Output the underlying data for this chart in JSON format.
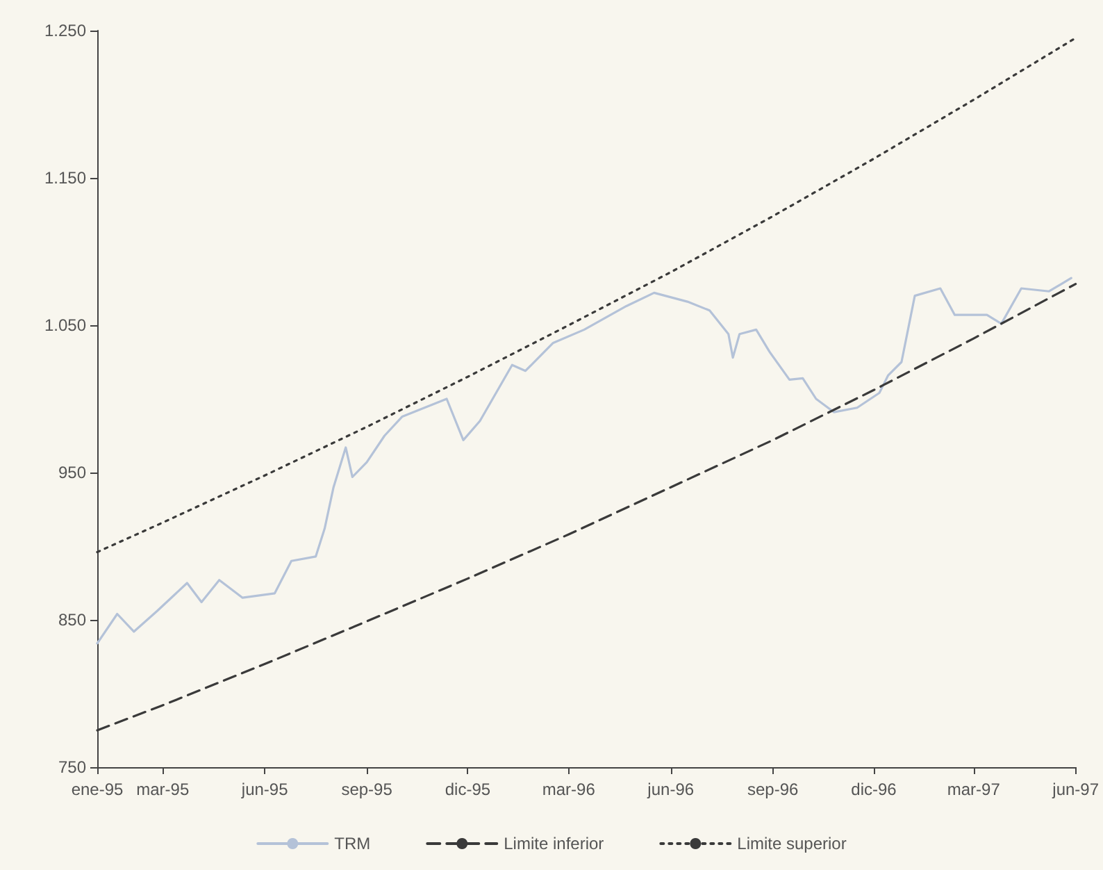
{
  "chart_data": {
    "type": "line",
    "xlim": [
      "1995-01-01",
      "1997-06-01"
    ],
    "xticks": [
      {
        "value": "1995-01-01",
        "label": "ene-95"
      },
      {
        "value": "1995-03-01",
        "label": "mar-95"
      },
      {
        "value": "1995-06-01",
        "label": "jun-95"
      },
      {
        "value": "1995-09-01",
        "label": "sep-95"
      },
      {
        "value": "1995-12-01",
        "label": "dic-95"
      },
      {
        "value": "1996-03-01",
        "label": "mar-96"
      },
      {
        "value": "1996-06-01",
        "label": "jun-96"
      },
      {
        "value": "1996-09-01",
        "label": "sep-96"
      },
      {
        "value": "1996-12-01",
        "label": "dic-96"
      },
      {
        "value": "1997-03-01",
        "label": "mar-97"
      },
      {
        "value": "1997-06-01",
        "label": "jun-97"
      }
    ],
    "ylim": [
      750,
      1250
    ],
    "yticks": [
      750,
      850,
      950,
      {
        "value": 1050,
        "label": "1.050"
      },
      {
        "value": 1150,
        "label": "1.150"
      },
      {
        "value": 1250,
        "label": "1.250"
      }
    ],
    "grid": false,
    "legend": "bottom",
    "marker": "none",
    "series": [
      {
        "name": "TRM",
        "color": "#b4c2d8",
        "line_style": "solid",
        "x": [
          "1995-01-01",
          "1995-01-19",
          "1995-02-03",
          "1995-02-24",
          "1995-03-23",
          "1995-04-05",
          "1995-04-21",
          "1995-05-12",
          "1995-06-10",
          "1995-06-25",
          "1995-07-17",
          "1995-07-25",
          "1995-08-02",
          "1995-08-13",
          "1995-08-19",
          "1995-09-01",
          "1995-09-17",
          "1995-10-03",
          "1995-11-12",
          "1995-11-27",
          "1995-12-12",
          "1996-01-10",
          "1996-01-22",
          "1996-02-16",
          "1996-03-15",
          "1996-04-22",
          "1996-05-17",
          "1996-06-16",
          "1996-07-06",
          "1996-07-23",
          "1996-07-27",
          "1996-08-02",
          "1996-08-17",
          "1996-08-29",
          "1996-09-16",
          "1996-09-28",
          "1996-10-10",
          "1996-10-26",
          "1996-11-16",
          "1996-12-06",
          "1996-12-14",
          "1996-12-26",
          "1997-01-07",
          "1997-01-30",
          "1997-02-12",
          "1997-03-13",
          "1997-03-26",
          "1997-04-13",
          "1997-05-08",
          "1997-05-28"
        ],
        "values": [
          834,
          854,
          842,
          856,
          875,
          862,
          877,
          865,
          868,
          890,
          893,
          912,
          940,
          967,
          947,
          957,
          975,
          988,
          1000,
          972,
          985,
          1023,
          1019,
          1038,
          1047,
          1063,
          1072,
          1066,
          1060,
          1044,
          1028,
          1044,
          1047,
          1032,
          1013,
          1014,
          1000,
          991,
          994,
          1004,
          1016,
          1025,
          1070,
          1075,
          1057,
          1057,
          1051,
          1075,
          1073,
          1082
        ]
      },
      {
        "name": "Limite inferior",
        "color": "#3a3a3a",
        "line_style": "dashed",
        "x": [
          "1995-01-01",
          "1995-03-01",
          "1995-06-01",
          "1995-09-01",
          "1995-12-01",
          "1996-03-01",
          "1996-06-01",
          "1996-09-01",
          "1996-12-01",
          "1997-03-01",
          "1997-06-01"
        ],
        "values": [
          775,
          792,
          820,
          849,
          878,
          908,
          940,
          972,
          1006,
          1041,
          1078
        ]
      },
      {
        "name": "Limite superior",
        "color": "#3a3a3a",
        "line_style": "dotted",
        "x": [
          "1995-01-01",
          "1995-03-01",
          "1995-06-01",
          "1995-09-01",
          "1995-12-01",
          "1996-03-01",
          "1996-06-01",
          "1996-09-01",
          "1996-12-01",
          "1997-03-01",
          "1997-06-01"
        ],
        "values": [
          896,
          916,
          948,
          981,
          1015,
          1050,
          1086,
          1124,
          1163,
          1203,
          1245
        ]
      }
    ]
  }
}
